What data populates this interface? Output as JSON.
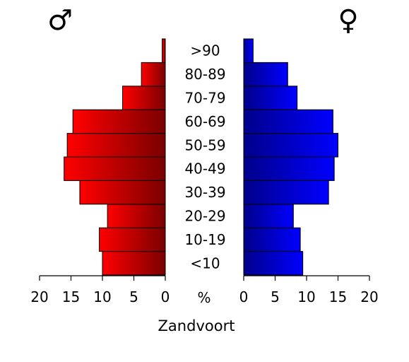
{
  "chart_data": {
    "type": "bar",
    "title": "Zandvoort",
    "unit_label": "%",
    "male_symbol": "♂",
    "female_symbol": "♀",
    "categories": [
      "<10",
      "10-19",
      "20-29",
      "30-39",
      "40-49",
      "50-59",
      "60-69",
      "70-79",
      "80-89",
      ">90"
    ],
    "series": [
      {
        "values": [
          10.0,
          10.5,
          9.2,
          13.6,
          16.1,
          15.6,
          14.7,
          6.8,
          3.8,
          0.5
        ],
        "color": "#ff0000"
      },
      {
        "values": [
          9.4,
          9.0,
          7.9,
          13.5,
          14.4,
          15.0,
          14.2,
          8.5,
          7.0,
          1.5
        ],
        "color": "#0000ff"
      }
    ],
    "xlim": [
      0,
      20
    ],
    "xticks": [
      "20",
      "15",
      "10",
      "5",
      "0",
      "5",
      "10",
      "15",
      "20"
    ],
    "grid": false,
    "legend": "none"
  }
}
